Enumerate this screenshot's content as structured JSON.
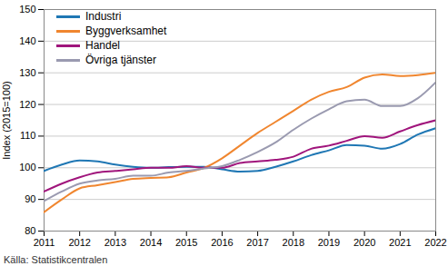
{
  "chart_data": {
    "type": "line",
    "y_label": "Index (2015=100)",
    "caption": "Källa: Statistikcentralen",
    "x": [
      2011,
      2011.5,
      2012,
      2012.5,
      2013,
      2013.5,
      2014,
      2014.5,
      2015,
      2015.5,
      2016,
      2016.5,
      2017,
      2017.5,
      2018,
      2018.5,
      2019,
      2019.5,
      2020,
      2020.5,
      2021,
      2021.5,
      2022
    ],
    "series": [
      {
        "name": "Industri",
        "color": "#1f77b4",
        "values": [
          99,
          101,
          102.3,
          102,
          101,
          100.3,
          100,
          100.2,
          100.3,
          100.3,
          99.5,
          98.8,
          99,
          100.3,
          102,
          104,
          105.5,
          107.2,
          107,
          106,
          107.5,
          110.5,
          112.5
        ]
      },
      {
        "name": "Byggverksamhet",
        "color": "#f0862f",
        "values": [
          86,
          90,
          93.5,
          94.5,
          95.5,
          96.5,
          96.8,
          97,
          98.5,
          100,
          103,
          107,
          111,
          114.5,
          118,
          121.5,
          124,
          125.5,
          128.5,
          129.5,
          129,
          129.3,
          130
        ]
      },
      {
        "name": "Handel",
        "color": "#a0157c",
        "values": [
          92.5,
          95,
          97,
          98.5,
          99,
          99.5,
          100,
          100,
          100.5,
          100,
          100,
          101.5,
          102,
          102.5,
          103.5,
          106,
          107,
          108.5,
          110,
          109.5,
          111.5,
          113.5,
          115
        ]
      },
      {
        "name": "Övriga tjänster",
        "color": "#9a9ab0",
        "values": [
          89.5,
          92.5,
          95,
          96,
          96.5,
          97.5,
          97.5,
          98.5,
          99,
          99.8,
          100.5,
          102.5,
          105,
          108,
          112,
          115.5,
          118.5,
          121,
          121.5,
          119.5,
          119.5,
          122,
          127
        ]
      }
    ],
    "xlim": [
      2011,
      2022
    ],
    "xticks": [
      2011,
      2012,
      2013,
      2014,
      2015,
      2016,
      2017,
      2018,
      2019,
      2020,
      2021,
      2022
    ],
    "ylim": [
      80,
      150
    ],
    "yticks": [
      80,
      90,
      100,
      110,
      120,
      130,
      140,
      150
    ],
    "grid": true,
    "legend": "top-left"
  }
}
